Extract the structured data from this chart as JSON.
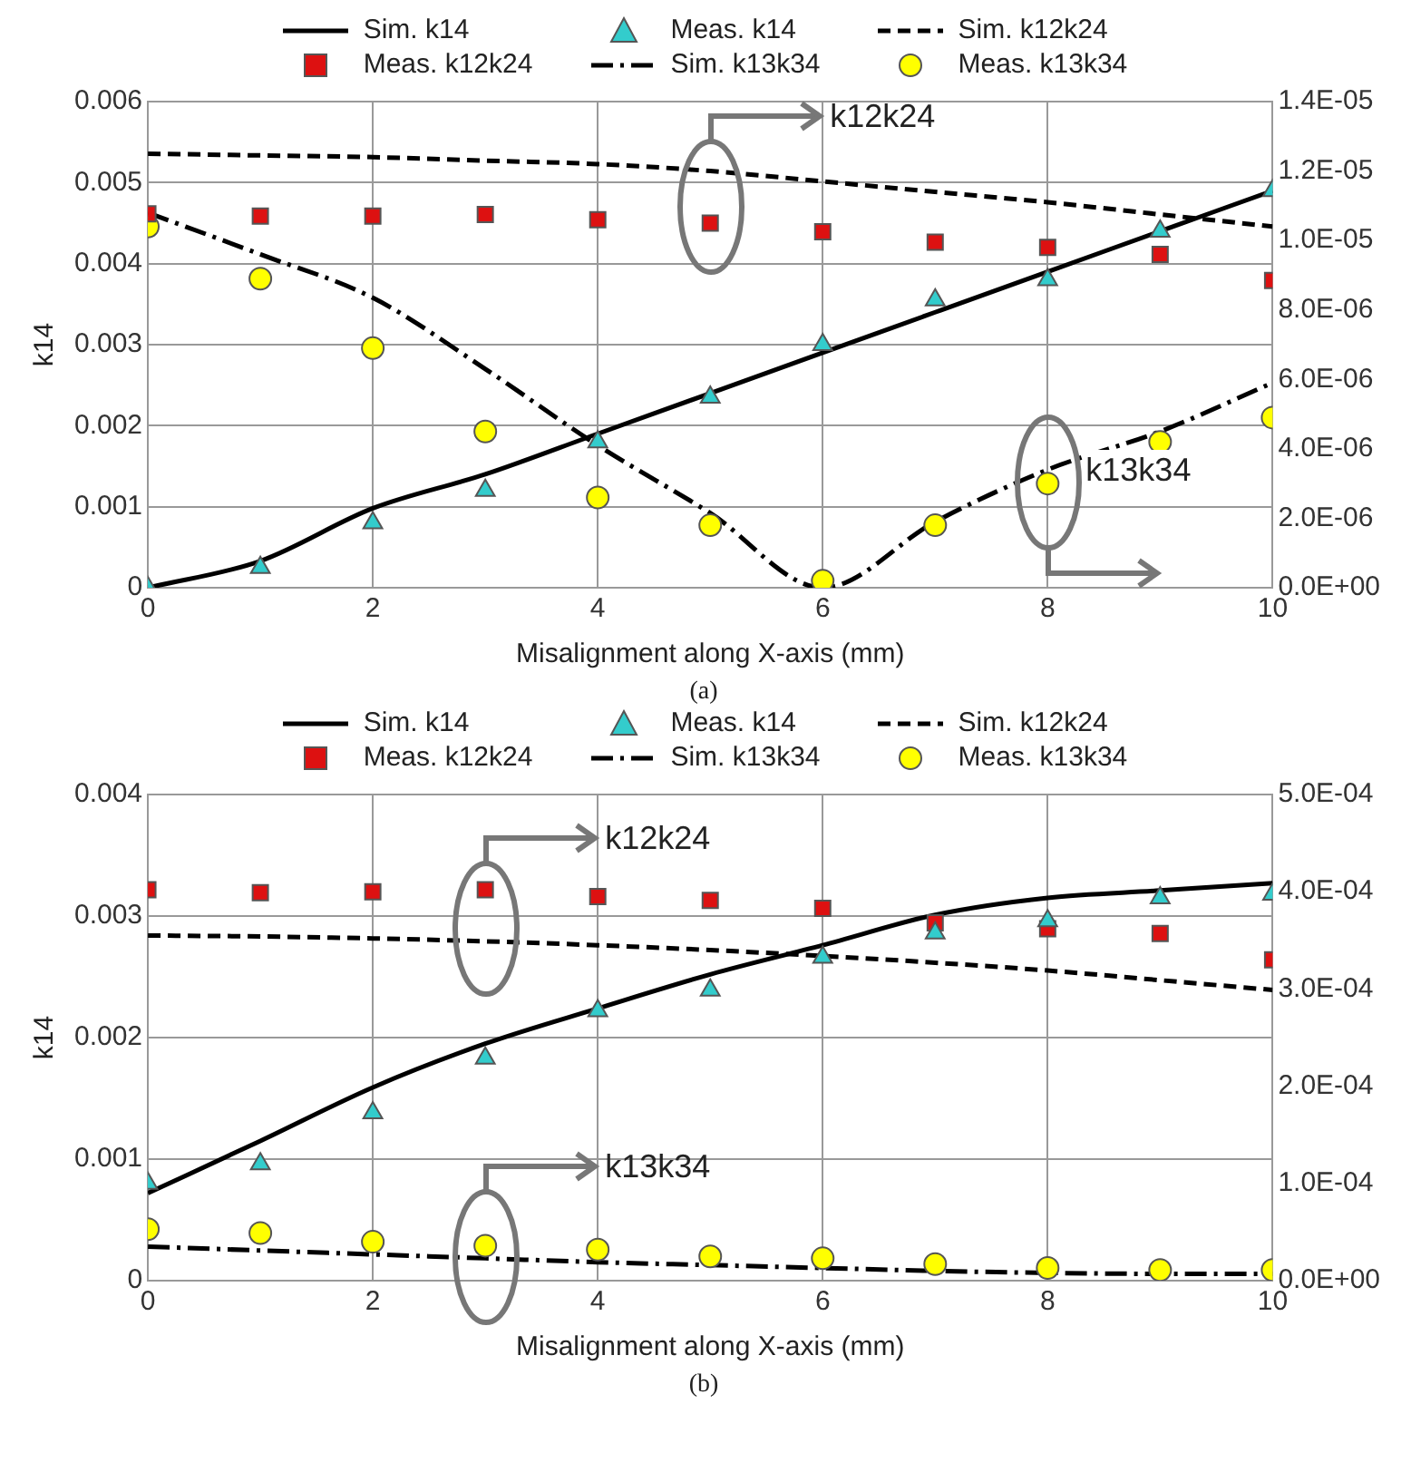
{
  "chart_data": [
    {
      "type": "line",
      "xlabel": "Misalignment along X-axis (mm)",
      "ylabel": "k14",
      "x": [
        0,
        1,
        2,
        3,
        4,
        5,
        6,
        7,
        8,
        9,
        10
      ],
      "xlim": [
        0,
        10
      ],
      "xticks": [
        0,
        2,
        4,
        6,
        8,
        10
      ],
      "ylim": [
        0,
        0.006
      ],
      "yticks": [
        0,
        0.001,
        0.002,
        0.003,
        0.004,
        0.005,
        0.006
      ],
      "y2lim": [
        0,
        1.4e-05
      ],
      "y2ticks": [
        {
          "value": 0,
          "label": "0.0E+00"
        },
        {
          "value": 2e-06,
          "label": "2.0E-06"
        },
        {
          "value": 4e-06,
          "label": "4.0E-06"
        },
        {
          "value": 6e-06,
          "label": "6.0E-06"
        },
        {
          "value": 8e-06,
          "label": "8.0E-06"
        },
        {
          "value": 1e-05,
          "label": "1.0E-05"
        },
        {
          "value": 1.2e-05,
          "label": "1.2E-05"
        },
        {
          "value": 1.4e-05,
          "label": "1.4E-05"
        }
      ],
      "grid": true,
      "legend": "top",
      "series": [
        {
          "name": "Sim. k14",
          "type": "line",
          "color": "#000000",
          "marker": "none",
          "line_style": "solid",
          "values": [
            0,
            0.00033,
            0.00098,
            0.0014,
            0.0019,
            0.0024,
            0.0029,
            0.0034,
            0.0039,
            0.0044,
            0.0049
          ]
        },
        {
          "name": "Meas. k14",
          "type": "scatter",
          "color": "#33cccc",
          "marker": "triangle",
          "values": [
            0,
            0.00025,
            0.0008,
            0.0012,
            0.0018,
            0.00235,
            0.003,
            0.00355,
            0.0038,
            0.0044,
            0.0049
          ]
        },
        {
          "name": "Sim. k12k24",
          "type": "line",
          "color": "#000000",
          "marker": "none",
          "line_style": "dashed",
          "axis": "y2",
          "values": [
            1.25e-05,
            1.245e-05,
            1.24e-05,
            1.23e-05,
            1.22e-05,
            1.2e-05,
            1.17e-05,
            1.14e-05,
            1.11e-05,
            1.075e-05,
            1.04e-05
          ]
        },
        {
          "name": "Meas. k12k24",
          "type": "scatter",
          "color": "#dd1111",
          "marker": "square",
          "axis": "y2",
          "values": [
            1.077e-05,
            1.07e-05,
            1.07e-05,
            1.075e-05,
            1.06e-05,
            1.05e-05,
            1.025e-05,
            9.95e-06,
            9.8e-06,
            9.6e-06,
            8.85e-06
          ]
        },
        {
          "name": "Sim. k13k34",
          "type": "line",
          "color": "#000000",
          "marker": "none",
          "line_style": "dashdot",
          "axis": "y2",
          "values": [
            1.08e-05,
            9.6e-06,
            8.35e-06,
            6.3e-06,
            4.1e-06,
            2.15e-06,
            0,
            1.9e-06,
            3.4e-06,
            4.5e-06,
            5.9e-06
          ]
        },
        {
          "name": "Meas. k13k34",
          "type": "scatter",
          "color": "#ffff00",
          "marker": "circle",
          "axis": "y2",
          "values": [
            1.04e-05,
            8.9e-06,
            6.9e-06,
            4.5e-06,
            2.6e-06,
            1.8e-06,
            2e-07,
            1.8e-06,
            3e-06,
            4.2e-06,
            4.9e-06
          ]
        }
      ],
      "annotations": [
        "k12k24",
        "k13k34",
        "(a)"
      ]
    },
    {
      "type": "line",
      "xlabel": "Misalignment along X-axis (mm)",
      "ylabel": "k14",
      "x": [
        0,
        1,
        2,
        3,
        4,
        5,
        6,
        7,
        8,
        9,
        10
      ],
      "xlim": [
        0,
        10
      ],
      "xticks": [
        0,
        2,
        4,
        6,
        8,
        10
      ],
      "ylim": [
        0,
        0.004
      ],
      "yticks": [
        0,
        0.001,
        0.002,
        0.003,
        0.004
      ],
      "y2lim": [
        0,
        0.0005
      ],
      "y2ticks": [
        {
          "value": 0,
          "label": "0.0E+00"
        },
        {
          "value": 0.0001,
          "label": "1.0E-04"
        },
        {
          "value": 0.0002,
          "label": "2.0E-04"
        },
        {
          "value": 0.0003,
          "label": "3.0E-04"
        },
        {
          "value": 0.0004,
          "label": "4.0E-04"
        },
        {
          "value": 0.0005,
          "label": "5.0E-04"
        }
      ],
      "grid": true,
      "legend": "top",
      "series": [
        {
          "name": "Sim. k14",
          "type": "line",
          "color": "#000000",
          "marker": "none",
          "line_style": "solid",
          "values": [
            0.00072,
            0.00115,
            0.00159,
            0.00195,
            0.00224,
            0.00252,
            0.00276,
            0.00301,
            0.00315,
            0.00321,
            0.00327
          ]
        },
        {
          "name": "Meas. k14",
          "type": "scatter",
          "color": "#33cccc",
          "marker": "triangle",
          "values": [
            0.0008,
            0.00096,
            0.00138,
            0.00183,
            0.00222,
            0.00239,
            0.00266,
            0.00286,
            0.00296,
            0.00315,
            0.00318
          ]
        },
        {
          "name": "Sim. k12k24",
          "type": "line",
          "color": "#000000",
          "marker": "none",
          "line_style": "dashed",
          "axis": "y2",
          "values": [
            0.000355,
            0.000354,
            0.000352,
            0.000349,
            0.000345,
            0.00034,
            0.000334,
            0.000327,
            0.000319,
            0.000309,
            0.000299
          ]
        },
        {
          "name": "Meas. k12k24",
          "type": "scatter",
          "color": "#dd1111",
          "marker": "square",
          "axis": "y2",
          "values": [
            0.000402,
            0.000399,
            0.0004,
            0.000402,
            0.000395,
            0.000391,
            0.000383,
            0.000368,
            0.000362,
            0.000357,
            0.00033
          ]
        },
        {
          "name": "Sim. k13k34",
          "type": "line",
          "color": "#000000",
          "marker": "none",
          "line_style": "dashdot",
          "axis": "y2",
          "values": [
            3.5e-05,
            3.1e-05,
            2.7e-05,
            2.3e-05,
            1.9e-05,
            1.6e-05,
            1.3e-05,
            1e-05,
            8e-06,
            7e-06,
            7e-06
          ]
        },
        {
          "name": "Meas. k13k34",
          "type": "scatter",
          "color": "#ffff00",
          "marker": "circle",
          "axis": "y2",
          "values": [
            5.3e-05,
            4.9e-05,
            4e-05,
            3.6e-05,
            3.2e-05,
            2.5e-05,
            2.3e-05,
            1.7e-05,
            1.3e-05,
            1.1e-05,
            1.1e-05
          ]
        }
      ],
      "annotations": [
        "k12k24",
        "k13k34",
        "(b)"
      ]
    }
  ]
}
